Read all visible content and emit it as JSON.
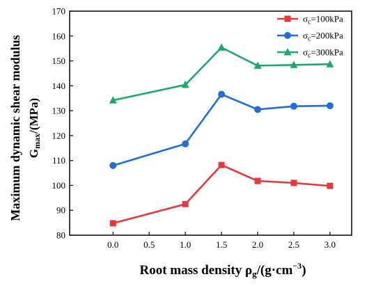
{
  "chart_data": {
    "type": "line",
    "x": [
      0.0,
      1.0,
      1.5,
      2.0,
      2.5,
      3.0
    ],
    "xticks": [
      "0.0",
      "0.5",
      "1.0",
      "1.5",
      "2.0",
      "2.5",
      "3.0"
    ],
    "xtick_values": [
      0.0,
      0.5,
      1.0,
      1.5,
      2.0,
      2.5,
      3.0
    ],
    "xlim": [
      -0.6,
      3.3
    ],
    "ylim": [
      80,
      170
    ],
    "yticks": [
      "80",
      "90",
      "100",
      "110",
      "120",
      "130",
      "140",
      "150",
      "160",
      "170"
    ],
    "ytick_values": [
      80,
      90,
      100,
      110,
      120,
      130,
      140,
      150,
      160,
      170
    ],
    "xlabel": {
      "main": "Root mass density ρ",
      "sub": "g",
      "tail": "/(g·cm",
      "sup": "−3",
      "end": ")"
    },
    "ylabel": {
      "line1": "Maximum dynamic shear modulus",
      "line2": "G",
      "line2_sub": "max",
      "line2_tail": "/(MPa)"
    },
    "legend_position": "top-right",
    "grid": false,
    "series": [
      {
        "name": "σc=100kPa",
        "label_main": "σ",
        "label_sub": "c",
        "label_tail": "=100kPa",
        "color": "#e8383d",
        "marker": "square",
        "values": [
          84.8,
          92.5,
          108.2,
          101.8,
          101.0,
          99.8
        ]
      },
      {
        "name": "σc=200kPa",
        "label_main": "σ",
        "label_sub": "c",
        "label_tail": "=200kPa",
        "color": "#1f6fd6",
        "marker": "circle",
        "values": [
          108.0,
          116.7,
          136.6,
          130.5,
          131.8,
          132.0
        ]
      },
      {
        "name": "σc=300kPa",
        "label_main": "σ",
        "label_sub": "c",
        "label_tail": "=300kPa",
        "color": "#1aa86b",
        "marker": "triangle",
        "values": [
          134.2,
          140.4,
          155.4,
          148.1,
          148.4,
          148.7
        ]
      }
    ]
  }
}
